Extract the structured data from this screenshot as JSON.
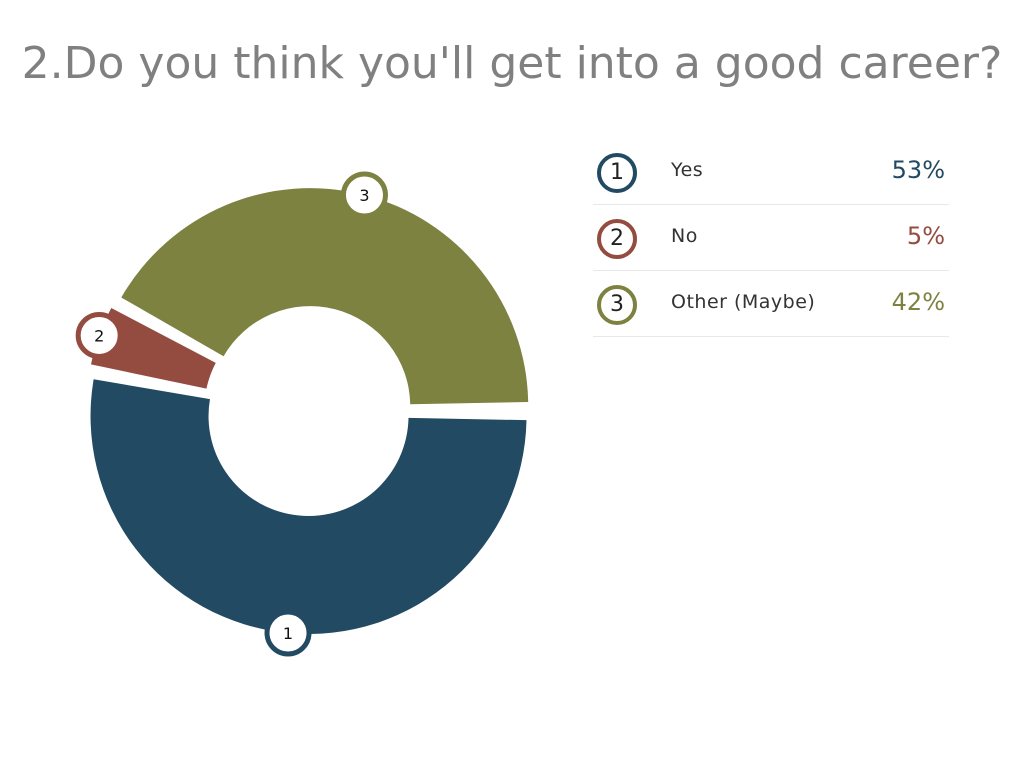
{
  "title": "2.Do you think you'll get into a good career?",
  "chart_data": {
    "type": "pie",
    "variant": "donut",
    "categories": [
      "Yes",
      "No",
      "Other (Maybe)"
    ],
    "values": [
      53,
      5,
      42
    ],
    "unit": "%",
    "labels": [
      "53%",
      "5%",
      "42%"
    ],
    "slice_numbers": [
      "1",
      "2",
      "3"
    ],
    "colors": [
      "#224a63",
      "#944b40",
      "#7d8240"
    ],
    "legend_position": "right"
  }
}
